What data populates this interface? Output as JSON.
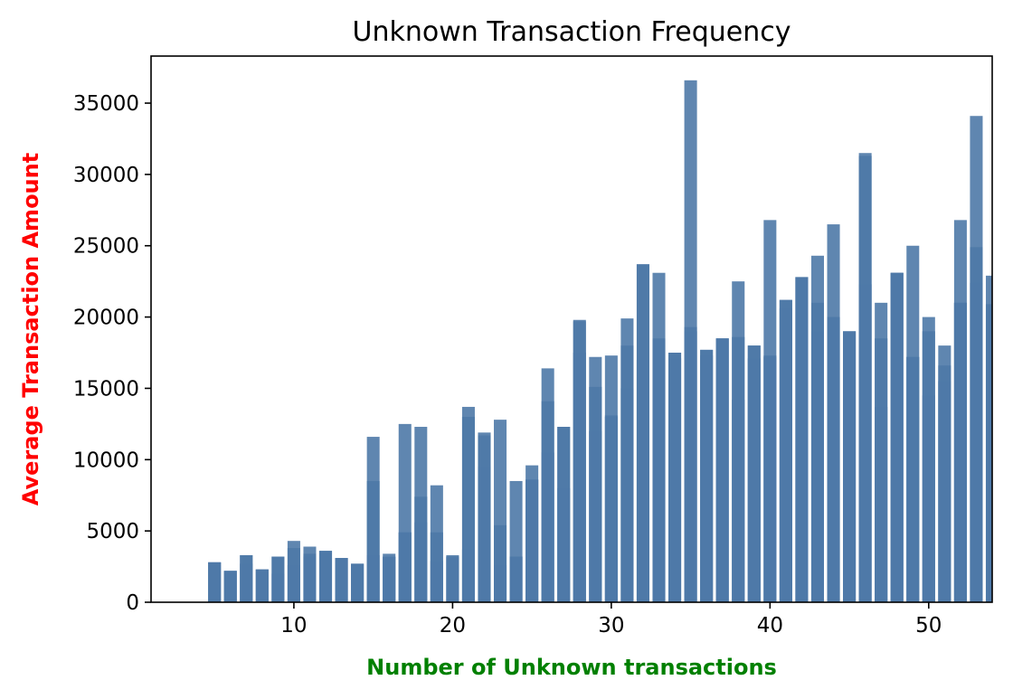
{
  "chart_data": {
    "type": "bar",
    "title": "Unknown Transaction Frequency",
    "xlabel": "Number of Unknown transactions",
    "ylabel": "Average Transaction Amount",
    "xlabel_color": "#008000",
    "ylabel_color": "#ff0000",
    "xlim": [
      1,
      54
    ],
    "ylim": [
      0,
      38300
    ],
    "xticks": [
      10,
      20,
      30,
      40,
      50
    ],
    "yticks": [
      0,
      5000,
      10000,
      15000,
      20000,
      25000,
      30000,
      35000
    ],
    "bar_color": "#4e79a7",
    "bar_alpha": 0.9,
    "grid": false,
    "legend": "none",
    "x": [
      5,
      6,
      7,
      8,
      9,
      10,
      11,
      12,
      13,
      14,
      15,
      16,
      17,
      18,
      19,
      20,
      21,
      22,
      23,
      24,
      25,
      26,
      27,
      28,
      29,
      30,
      31,
      32,
      33,
      34,
      35,
      36,
      37,
      38,
      39,
      40,
      41,
      42,
      43,
      44,
      45,
      46,
      47,
      48,
      49,
      50,
      51,
      52,
      53,
      54
    ],
    "series": [
      {
        "values": [
          2800,
          2200,
          2700,
          2300,
          2000,
          2600,
          3200,
          3600,
          3100,
          2700,
          3300,
          3200,
          4900,
          5600,
          2900,
          3200,
          3700,
          9500,
          2600,
          3200,
          8600,
          10500,
          8000,
          17500,
          12000,
          13000,
          15000,
          17000,
          18500,
          17100,
          19000,
          17300,
          18500,
          14200,
          17100,
          17200,
          20600,
          22800,
          19000,
          20000,
          19000,
          22300,
          13700,
          23100,
          17200,
          14500,
          15500,
          21000,
          22400,
          20900
        ]
      },
      {
        "values": [
          2800,
          2200,
          3300,
          2300,
          3200,
          3800,
          3400,
          3600,
          3100,
          2700,
          8500,
          3200,
          4900,
          7400,
          4900,
          3200,
          13000,
          11700,
          5400,
          3200,
          8600,
          14100,
          12300,
          19700,
          15100,
          13100,
          18000,
          23700,
          18400,
          17500,
          19300,
          17700,
          18500,
          18600,
          18000,
          17300,
          21200,
          22800,
          21000,
          20000,
          19000,
          31300,
          18500,
          23100,
          17200,
          19000,
          16600,
          21000,
          24900,
          20900
        ]
      },
      {
        "values": [
          2800,
          2200,
          3300,
          2300,
          3200,
          4300,
          3900,
          3600,
          3100,
          2700,
          11600,
          3400,
          12500,
          12300,
          8200,
          3300,
          13700,
          11900,
          12800,
          8500,
          9600,
          16400,
          12300,
          19800,
          17200,
          17300,
          19900,
          23700,
          23100,
          17500,
          36600,
          17700,
          18500,
          22500,
          18000,
          26800,
          21200,
          22800,
          24300,
          26500,
          19000,
          31500,
          21000,
          23100,
          25000,
          20000,
          18000,
          26800,
          34100,
          22900
        ]
      }
    ]
  }
}
